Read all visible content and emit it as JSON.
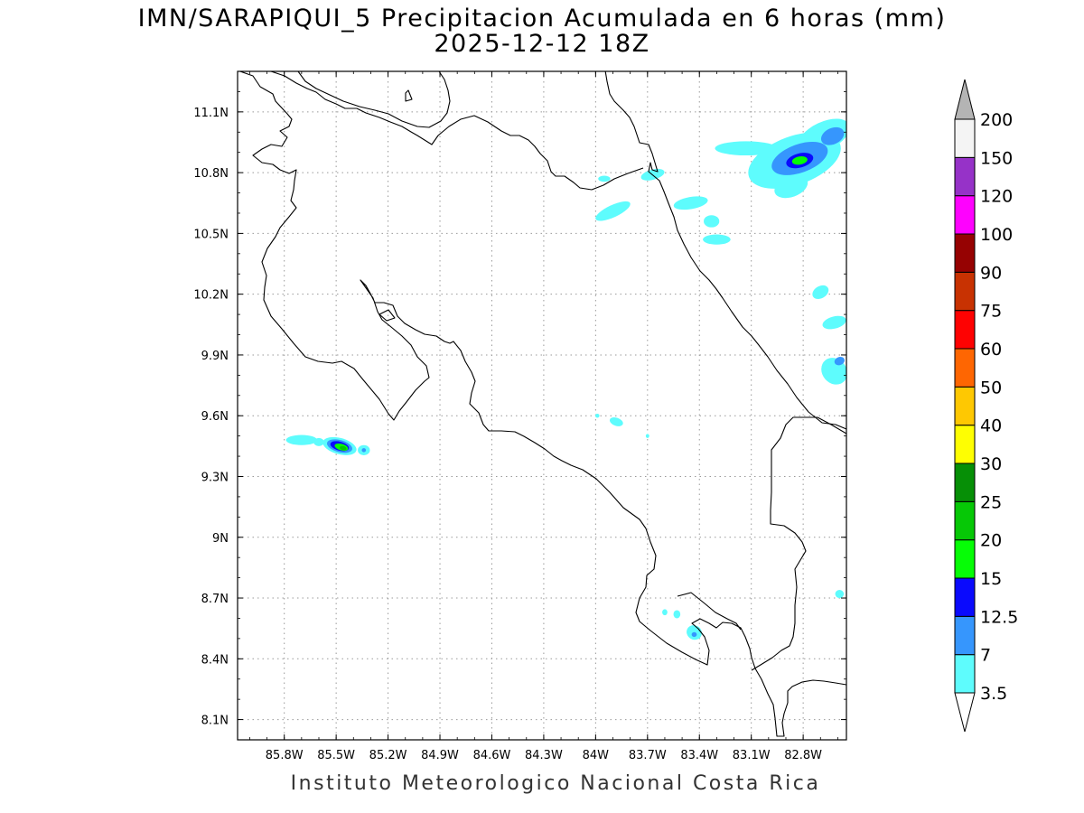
{
  "title_line1": "IMN/SARAPIQUI_5 Precipitacion Acumulada en 6 horas (mm)",
  "title_line2": "2025-12-12 18Z",
  "credit": "Instituto Meteorologico Nacional Costa Rica",
  "map": {
    "lon_range": [
      -86.07,
      -82.55
    ],
    "lat_range": [
      8.0,
      11.3
    ],
    "lon_ticks": [
      -85.8,
      -85.5,
      -85.2,
      -84.9,
      -84.6,
      -84.3,
      -84.0,
      -83.7,
      -83.4,
      -83.1,
      -82.8
    ],
    "lon_tick_labels": [
      "85.8W",
      "85.5W",
      "85.2W",
      "84.9W",
      "84.6W",
      "84.3W",
      "84W",
      "83.7W",
      "83.4W",
      "83.1W",
      "82.8W"
    ],
    "lat_ticks": [
      8.1,
      8.4,
      8.7,
      9.0,
      9.3,
      9.6,
      9.9,
      10.2,
      10.5,
      10.8,
      11.1
    ],
    "lat_tick_labels": [
      "8.1N",
      "8.4N",
      "8.7N",
      "9N",
      "9.3N",
      "9.6N",
      "9.9N",
      "10.2N",
      "10.5N",
      "10.8N",
      "11.1N"
    ],
    "grid": "dotted",
    "coast_color": "#000000"
  },
  "colorbar": {
    "labels": [
      "3.5",
      "7",
      "12.5",
      "15",
      "20",
      "25",
      "30",
      "40",
      "50",
      "60",
      "75",
      "90",
      "100",
      "120",
      "150",
      "200"
    ],
    "colors": [
      "#5efcfd",
      "#3696fd",
      "#0a0afd",
      "#06fd06",
      "#06c806",
      "#068f06",
      "#fefe02",
      "#fec802",
      "#fe6602",
      "#fe0202",
      "#c83202",
      "#960202",
      "#fe02fe",
      "#9632c8",
      "#f4f4f4"
    ],
    "overflow_color": "#b4b4b4"
  },
  "precip_areas": [
    {
      "level": 0,
      "lon": -82.85,
      "lat": 10.86,
      "rx": 0.28,
      "ry": 0.12,
      "rot": -20
    },
    {
      "level": 0,
      "lon": -82.68,
      "lat": 10.98,
      "rx": 0.16,
      "ry": 0.07,
      "rot": -25
    },
    {
      "level": 0,
      "lon": -82.87,
      "lat": 10.73,
      "rx": 0.1,
      "ry": 0.05,
      "rot": -20
    },
    {
      "level": 1,
      "lon": -82.82,
      "lat": 10.87,
      "rx": 0.17,
      "ry": 0.07,
      "rot": -20
    },
    {
      "level": 1,
      "lon": -82.63,
      "lat": 10.98,
      "rx": 0.07,
      "ry": 0.04,
      "rot": -25
    },
    {
      "level": 2,
      "lon": -82.82,
      "lat": 10.86,
      "rx": 0.08,
      "ry": 0.035,
      "rot": -15
    },
    {
      "level": 3,
      "lon": -82.82,
      "lat": 10.86,
      "rx": 0.045,
      "ry": 0.02,
      "rot": -10
    },
    {
      "level": 0,
      "lon": -83.13,
      "lat": 10.92,
      "rx": 0.18,
      "ry": 0.035,
      "rot": 0
    },
    {
      "level": 0,
      "lon": -83.45,
      "lat": 10.65,
      "rx": 0.1,
      "ry": 0.03,
      "rot": -10
    },
    {
      "level": 0,
      "lon": -83.3,
      "lat": 10.47,
      "rx": 0.08,
      "ry": 0.025,
      "rot": 0
    },
    {
      "level": 0,
      "lon": -83.33,
      "lat": 10.56,
      "rx": 0.045,
      "ry": 0.03,
      "rot": 0
    },
    {
      "level": 0,
      "lon": -83.9,
      "lat": 10.61,
      "rx": 0.11,
      "ry": 0.03,
      "rot": -25
    },
    {
      "level": 0,
      "lon": -83.67,
      "lat": 10.79,
      "rx": 0.07,
      "ry": 0.025,
      "rot": -15
    },
    {
      "level": 0,
      "lon": -83.95,
      "lat": 10.77,
      "rx": 0.035,
      "ry": 0.015,
      "rot": 0
    },
    {
      "level": 0,
      "lon": -82.7,
      "lat": 10.21,
      "rx": 0.05,
      "ry": 0.03,
      "rot": -30
    },
    {
      "level": 0,
      "lon": -82.62,
      "lat": 10.06,
      "rx": 0.07,
      "ry": 0.03,
      "rot": -15
    },
    {
      "level": 0,
      "lon": -82.62,
      "lat": 9.82,
      "rx": 0.07,
      "ry": 0.07,
      "rot": -40
    },
    {
      "level": 1,
      "lon": -82.59,
      "lat": 9.87,
      "rx": 0.03,
      "ry": 0.02,
      "rot": -20
    },
    {
      "level": 0,
      "lon": -85.48,
      "lat": 9.45,
      "rx": 0.1,
      "ry": 0.04,
      "rot": 15
    },
    {
      "level": 1,
      "lon": -85.48,
      "lat": 9.45,
      "rx": 0.075,
      "ry": 0.03,
      "rot": 15
    },
    {
      "level": 2,
      "lon": -85.48,
      "lat": 9.45,
      "rx": 0.055,
      "ry": 0.022,
      "rot": 15
    },
    {
      "level": 3,
      "lon": -85.47,
      "lat": 9.445,
      "rx": 0.04,
      "ry": 0.016,
      "rot": 15
    },
    {
      "level": 4,
      "lon": -85.46,
      "lat": 9.44,
      "rx": 0.02,
      "ry": 0.01,
      "rot": 15
    },
    {
      "level": 0,
      "lon": -85.7,
      "lat": 9.48,
      "rx": 0.09,
      "ry": 0.025,
      "rot": 0
    },
    {
      "level": 0,
      "lon": -85.6,
      "lat": 9.47,
      "rx": 0.03,
      "ry": 0.02,
      "rot": 0
    },
    {
      "level": 0,
      "lon": -85.34,
      "lat": 9.43,
      "rx": 0.035,
      "ry": 0.025,
      "rot": 0
    },
    {
      "level": 1,
      "lon": -85.34,
      "lat": 9.43,
      "rx": 0.012,
      "ry": 0.01,
      "rot": 0
    },
    {
      "level": 0,
      "lon": -83.88,
      "lat": 9.57,
      "rx": 0.04,
      "ry": 0.02,
      "rot": 20
    },
    {
      "level": 0,
      "lon": -83.99,
      "lat": 9.6,
      "rx": 0.012,
      "ry": 0.01,
      "rot": 0
    },
    {
      "level": 0,
      "lon": -83.43,
      "lat": 8.53,
      "rx": 0.045,
      "ry": 0.035,
      "rot": 30
    },
    {
      "level": 1,
      "lon": -83.43,
      "lat": 8.52,
      "rx": 0.015,
      "ry": 0.012,
      "rot": 0
    },
    {
      "level": 0,
      "lon": -83.53,
      "lat": 8.62,
      "rx": 0.02,
      "ry": 0.02,
      "rot": 0
    },
    {
      "level": 0,
      "lon": -83.6,
      "lat": 8.63,
      "rx": 0.015,
      "ry": 0.015,
      "rot": 0
    },
    {
      "level": 0,
      "lon": -82.59,
      "lat": 8.72,
      "rx": 0.025,
      "ry": 0.02,
      "rot": 0
    },
    {
      "level": 0,
      "lon": -83.7,
      "lat": 9.5,
      "rx": 0.01,
      "ry": 0.01,
      "rot": 0
    }
  ]
}
